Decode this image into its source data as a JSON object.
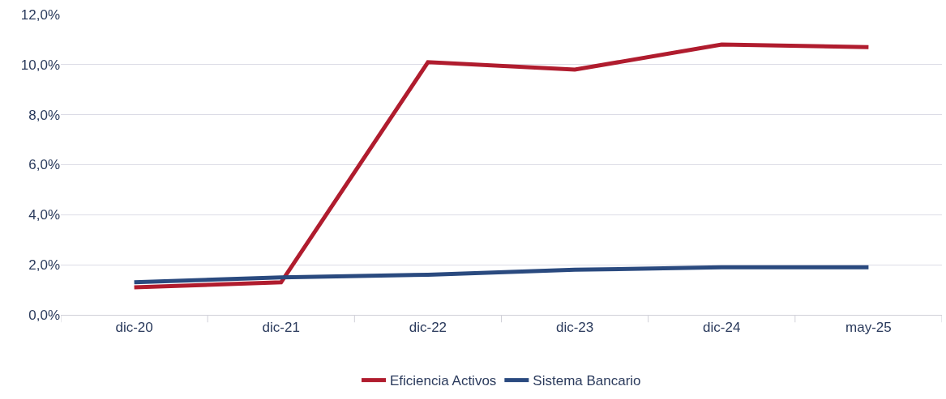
{
  "chart_data": {
    "type": "line",
    "categories": [
      "dic-20",
      "dic-21",
      "dic-22",
      "dic-23",
      "dic-24",
      "may-25"
    ],
    "series": [
      {
        "name": "Eficiencia Activos",
        "color": "#b01c2e",
        "values": [
          1.1,
          1.3,
          10.1,
          9.8,
          10.8,
          10.7
        ]
      },
      {
        "name": "Sistema Bancario",
        "color": "#2a4a7f",
        "values": [
          1.3,
          1.5,
          1.6,
          1.8,
          1.9,
          1.9
        ]
      }
    ],
    "ylim": [
      0,
      12
    ],
    "yticks": [
      {
        "value": 0,
        "label": "0,0%"
      },
      {
        "value": 2,
        "label": "2,0%"
      },
      {
        "value": 4,
        "label": "4,0%"
      },
      {
        "value": 6,
        "label": "6,0%"
      },
      {
        "value": 8,
        "label": "8,0%"
      },
      {
        "value": 10,
        "label": "10,0%"
      },
      {
        "value": 12,
        "label": "12,0%"
      }
    ],
    "grid": "y",
    "legend": "bottom",
    "marker": "none",
    "line_style": "solid"
  }
}
